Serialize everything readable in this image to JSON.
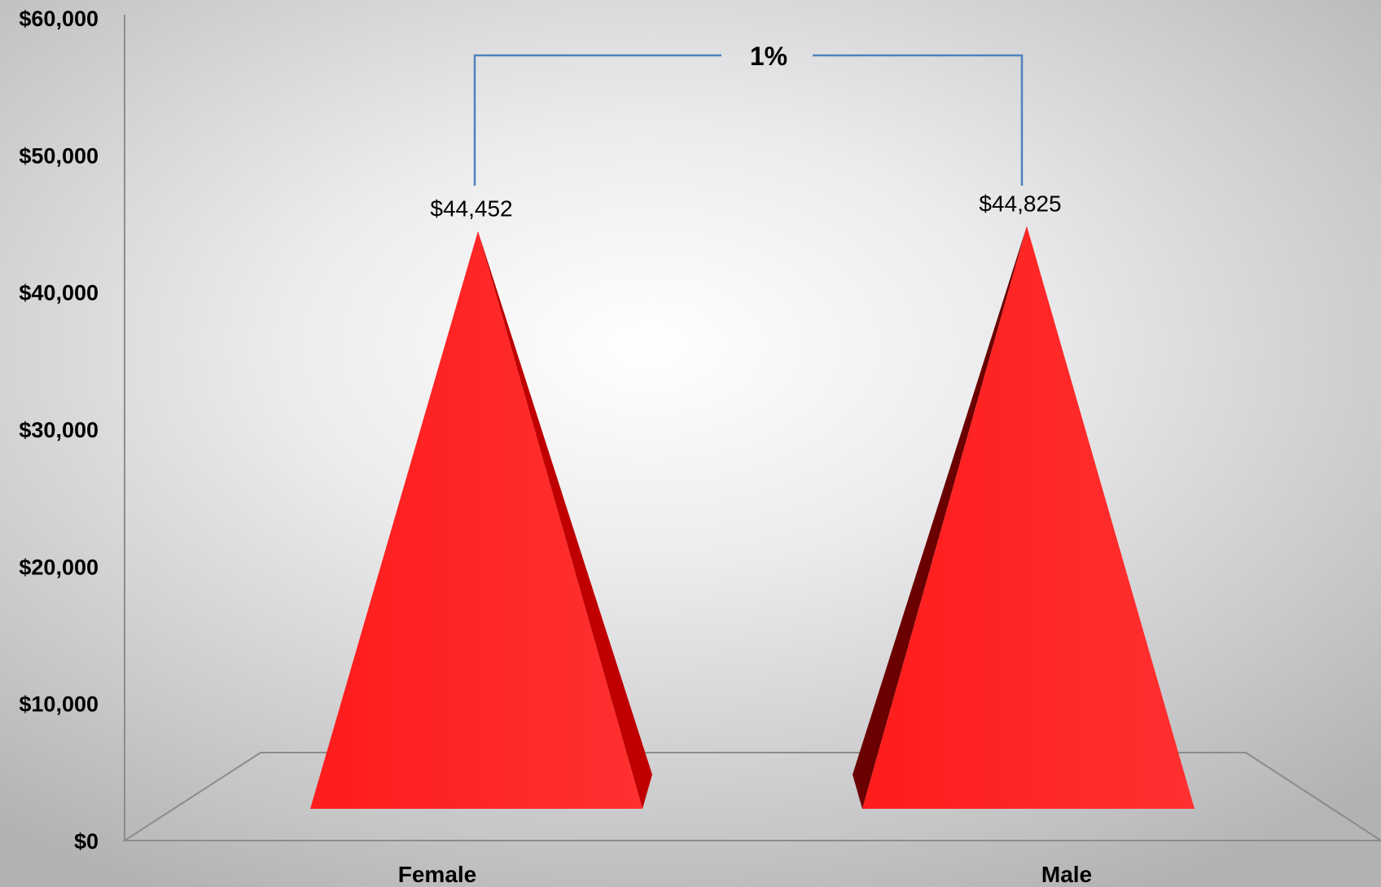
{
  "chart_data": {
    "type": "bar",
    "style": "3d-cone",
    "categories": [
      "Female",
      "Male"
    ],
    "values": [
      44452,
      44825
    ],
    "value_labels": [
      "$44,452",
      "$44,825"
    ],
    "ylim": [
      0,
      60000
    ],
    "y_ticks": [
      "$0",
      "$10,000",
      "$20,000",
      "$30,000",
      "$40,000",
      "$50,000",
      "$60,000"
    ],
    "grid": false,
    "annotation": {
      "text": "1%",
      "connects": [
        "Female",
        "Male"
      ]
    },
    "colors": {
      "bar": "#ff2020",
      "bar_side": "#c00000",
      "bar_dark": "#6b0000",
      "bracket": "#4f81bd",
      "axis": "#8c8c8c"
    }
  }
}
